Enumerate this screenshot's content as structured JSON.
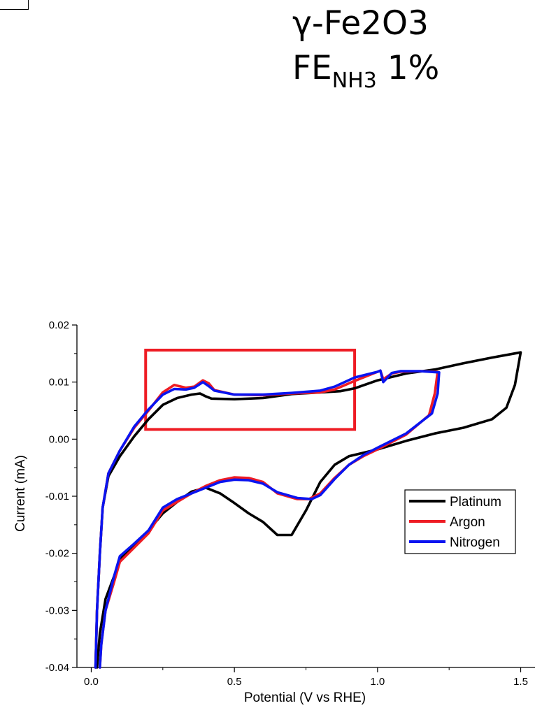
{
  "title": {
    "line1": "γ-Fe2O3",
    "line2_main": "FE",
    "line2_sub": "NH3",
    "line2_value": "1%"
  },
  "chart_data": {
    "type": "line",
    "xlabel": "Potential (V vs RHE)",
    "ylabel": "Current (mA)",
    "xlim": [
      -0.05,
      1.55
    ],
    "ylim": [
      -0.04,
      0.02
    ],
    "xticks": [
      {
        "value": 0,
        "label": "0.0"
      },
      {
        "value": 0.5,
        "label": "0.5"
      },
      {
        "value": 1.0,
        "label": "1.0"
      },
      {
        "value": 1.5,
        "label": "1.5"
      }
    ],
    "yticks": [
      {
        "value": -0.04,
        "label": "-0.04"
      },
      {
        "value": -0.03,
        "label": "-0.03"
      },
      {
        "value": -0.02,
        "label": "-0.02"
      },
      {
        "value": -0.01,
        "label": "-0.01"
      },
      {
        "value": 0.0,
        "label": "0.00"
      },
      {
        "value": 0.01,
        "label": "0.01"
      },
      {
        "value": 0.02,
        "label": "0.02"
      }
    ],
    "grid": false,
    "legend_position": "right",
    "highlight_box": {
      "x0": 0.19,
      "x1": 0.92,
      "y0": 0.0017,
      "y1": 0.0156,
      "color": "#ee1c24"
    },
    "series": [
      {
        "name": "Platinum",
        "color": "#000000",
        "points": [
          [
            0.015,
            -0.04
          ],
          [
            0.02,
            -0.03
          ],
          [
            0.03,
            -0.02
          ],
          [
            0.04,
            -0.012
          ],
          [
            0.06,
            -0.0065
          ],
          [
            0.1,
            -0.003
          ],
          [
            0.15,
            0.0005
          ],
          [
            0.2,
            0.0035
          ],
          [
            0.25,
            0.006
          ],
          [
            0.3,
            0.0072
          ],
          [
            0.35,
            0.0078
          ],
          [
            0.38,
            0.008
          ],
          [
            0.4,
            0.0075
          ],
          [
            0.42,
            0.0071
          ],
          [
            0.5,
            0.007
          ],
          [
            0.6,
            0.0072
          ],
          [
            0.7,
            0.0079
          ],
          [
            0.8,
            0.0082
          ],
          [
            0.87,
            0.0084
          ],
          [
            0.92,
            0.0089
          ],
          [
            1.0,
            0.0103
          ],
          [
            1.1,
            0.0115
          ],
          [
            1.2,
            0.0122
          ],
          [
            1.3,
            0.0133
          ],
          [
            1.4,
            0.0143
          ],
          [
            1.5,
            0.0152
          ],
          [
            1.495,
            0.0138
          ],
          [
            1.48,
            0.0095
          ],
          [
            1.45,
            0.0055
          ],
          [
            1.4,
            0.0035
          ],
          [
            1.3,
            0.002
          ],
          [
            1.2,
            0.001
          ],
          [
            1.1,
            -0.0003
          ],
          [
            1.0,
            -0.0018
          ],
          [
            0.9,
            -0.003
          ],
          [
            0.85,
            -0.0045
          ],
          [
            0.8,
            -0.0075
          ],
          [
            0.75,
            -0.0125
          ],
          [
            0.7,
            -0.0168
          ],
          [
            0.65,
            -0.0168
          ],
          [
            0.6,
            -0.0145
          ],
          [
            0.55,
            -0.013
          ],
          [
            0.5,
            -0.0112
          ],
          [
            0.45,
            -0.0095
          ],
          [
            0.4,
            -0.0085
          ],
          [
            0.35,
            -0.0092
          ],
          [
            0.3,
            -0.011
          ],
          [
            0.25,
            -0.013
          ],
          [
            0.2,
            -0.016
          ],
          [
            0.15,
            -0.0185
          ],
          [
            0.1,
            -0.021
          ],
          [
            0.08,
            -0.024
          ],
          [
            0.05,
            -0.028
          ],
          [
            0.03,
            -0.034
          ],
          [
            0.02,
            -0.04
          ]
        ]
      },
      {
        "name": "Argon",
        "color": "#ee1c24",
        "points": [
          [
            0.015,
            -0.04
          ],
          [
            0.02,
            -0.03
          ],
          [
            0.03,
            -0.02
          ],
          [
            0.04,
            -0.012
          ],
          [
            0.06,
            -0.006
          ],
          [
            0.1,
            -0.002
          ],
          [
            0.15,
            0.002
          ],
          [
            0.2,
            0.005
          ],
          [
            0.25,
            0.0082
          ],
          [
            0.29,
            0.0095
          ],
          [
            0.33,
            0.009
          ],
          [
            0.36,
            0.0092
          ],
          [
            0.39,
            0.0103
          ],
          [
            0.41,
            0.0098
          ],
          [
            0.43,
            0.0086
          ],
          [
            0.5,
            0.0078
          ],
          [
            0.6,
            0.0077
          ],
          [
            0.7,
            0.008
          ],
          [
            0.8,
            0.0082
          ],
          [
            0.85,
            0.0087
          ],
          [
            0.92,
            0.0102
          ],
          [
            1.0,
            0.0118
          ],
          [
            1.01,
            0.012
          ],
          [
            1.02,
            0.0105
          ],
          [
            1.05,
            0.0115
          ],
          [
            1.08,
            0.0118
          ],
          [
            1.15,
            0.0119
          ],
          [
            1.21,
            0.0118
          ],
          [
            1.2,
            0.008
          ],
          [
            1.18,
            0.0042
          ],
          [
            1.1,
            0.0008
          ],
          [
            1.0,
            -0.0018
          ],
          [
            0.95,
            -0.003
          ],
          [
            0.9,
            -0.0045
          ],
          [
            0.85,
            -0.0068
          ],
          [
            0.8,
            -0.0095
          ],
          [
            0.76,
            -0.0105
          ],
          [
            0.72,
            -0.0105
          ],
          [
            0.65,
            -0.0095
          ],
          [
            0.6,
            -0.0075
          ],
          [
            0.55,
            -0.0068
          ],
          [
            0.5,
            -0.0067
          ],
          [
            0.45,
            -0.0072
          ],
          [
            0.4,
            -0.0082
          ],
          [
            0.35,
            -0.0095
          ],
          [
            0.3,
            -0.011
          ],
          [
            0.25,
            -0.0125
          ],
          [
            0.2,
            -0.0165
          ],
          [
            0.15,
            -0.019
          ],
          [
            0.1,
            -0.0215
          ],
          [
            0.08,
            -0.025
          ],
          [
            0.05,
            -0.03
          ],
          [
            0.035,
            -0.036
          ],
          [
            0.03,
            -0.04
          ]
        ]
      },
      {
        "name": "Nitrogen",
        "color": "#0a14f0",
        "points": [
          [
            0.015,
            -0.04
          ],
          [
            0.02,
            -0.03
          ],
          [
            0.03,
            -0.02
          ],
          [
            0.04,
            -0.012
          ],
          [
            0.06,
            -0.006
          ],
          [
            0.1,
            -0.002
          ],
          [
            0.15,
            0.0022
          ],
          [
            0.2,
            0.0052
          ],
          [
            0.25,
            0.0078
          ],
          [
            0.29,
            0.0088
          ],
          [
            0.33,
            0.0087
          ],
          [
            0.36,
            0.009
          ],
          [
            0.39,
            0.01
          ],
          [
            0.41,
            0.0093
          ],
          [
            0.43,
            0.0085
          ],
          [
            0.5,
            0.0078
          ],
          [
            0.6,
            0.0078
          ],
          [
            0.7,
            0.0081
          ],
          [
            0.8,
            0.0085
          ],
          [
            0.85,
            0.0092
          ],
          [
            0.92,
            0.0108
          ],
          [
            1.0,
            0.0118
          ],
          [
            1.01,
            0.012
          ],
          [
            1.02,
            0.01
          ],
          [
            1.05,
            0.0116
          ],
          [
            1.08,
            0.0119
          ],
          [
            1.15,
            0.0119
          ],
          [
            1.215,
            0.0117
          ],
          [
            1.21,
            0.008
          ],
          [
            1.19,
            0.0045
          ],
          [
            1.1,
            0.001
          ],
          [
            1.0,
            -0.0015
          ],
          [
            0.95,
            -0.0028
          ],
          [
            0.9,
            -0.0045
          ],
          [
            0.85,
            -0.007
          ],
          [
            0.8,
            -0.0098
          ],
          [
            0.77,
            -0.0105
          ],
          [
            0.72,
            -0.0103
          ],
          [
            0.65,
            -0.0093
          ],
          [
            0.6,
            -0.0078
          ],
          [
            0.55,
            -0.0072
          ],
          [
            0.5,
            -0.0071
          ],
          [
            0.45,
            -0.0075
          ],
          [
            0.4,
            -0.0085
          ],
          [
            0.35,
            -0.0095
          ],
          [
            0.3,
            -0.0105
          ],
          [
            0.25,
            -0.012
          ],
          [
            0.2,
            -0.016
          ],
          [
            0.15,
            -0.0183
          ],
          [
            0.1,
            -0.0205
          ],
          [
            0.08,
            -0.024
          ],
          [
            0.05,
            -0.03
          ],
          [
            0.035,
            -0.036
          ],
          [
            0.03,
            -0.04
          ]
        ]
      }
    ]
  }
}
